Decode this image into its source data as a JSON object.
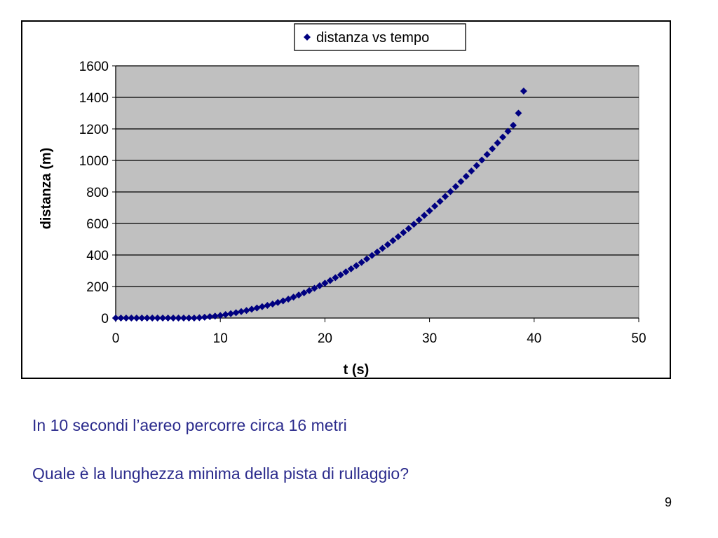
{
  "slide": {
    "text_line_1": "In 10 secondi l’aereo percorre circa 16 metri",
    "text_line_2": "Quale è la lunghezza minima della pista di rullaggio?",
    "page_number": "9",
    "text_color": "#2b2b8c"
  },
  "chart_data": {
    "type": "scatter",
    "title": "",
    "xlabel": "t (s)",
    "ylabel": "distanza (m)",
    "xlim": [
      0,
      50
    ],
    "ylim": [
      0,
      1600
    ],
    "xticks": [
      0,
      10,
      20,
      30,
      40,
      50
    ],
    "yticks": [
      0,
      200,
      400,
      600,
      800,
      1000,
      1200,
      1400,
      1600
    ],
    "grid": "horizontal",
    "legend": "top-center",
    "plot_background": "#c0c0c0",
    "series": [
      {
        "name": "distanza vs tempo",
        "color": "#000080",
        "marker": "diamond",
        "x": [
          0,
          0.5,
          1,
          1.5,
          2,
          2.5,
          3,
          3.5,
          4,
          4.5,
          5,
          5.5,
          6,
          6.5,
          7,
          7.5,
          8,
          8.5,
          9,
          9.5,
          10,
          10.5,
          11,
          11.5,
          12,
          12.5,
          13,
          13.5,
          14,
          14.5,
          15,
          15.5,
          16,
          16.5,
          17,
          17.5,
          18,
          18.5,
          19,
          19.5,
          20,
          20.5,
          21,
          21.5,
          22,
          22.5,
          23,
          23.5,
          24,
          24.5,
          25,
          25.5,
          26,
          26.5,
          27,
          27.5,
          28,
          28.5,
          29,
          29.5,
          30,
          30.5,
          31,
          31.5,
          32,
          32.5,
          33,
          33.5,
          34,
          34.5,
          35,
          35.5,
          36,
          36.5,
          37,
          37.5,
          38,
          38.5,
          39
        ],
        "y": [
          0,
          0,
          0,
          0,
          0,
          0,
          0,
          0,
          0,
          0,
          0,
          0,
          0,
          0,
          0,
          0,
          2,
          5,
          9,
          12,
          16,
          22,
          28,
          34,
          41,
          48,
          56,
          64,
          72,
          80,
          89,
          99,
          109,
          120,
          133,
          146,
          160,
          174,
          189,
          205,
          221,
          238,
          256,
          274,
          293,
          312,
          332,
          353,
          375,
          397,
          419,
          442,
          466,
          491,
          516,
          542,
          568,
          595,
          623,
          651,
          680,
          710,
          740,
          771,
          802,
          834,
          866,
          899,
          933,
          967,
          1002,
          1038,
          1074,
          1111,
          1148,
          1185,
          1223,
          1300,
          1440
        ]
      }
    ]
  }
}
